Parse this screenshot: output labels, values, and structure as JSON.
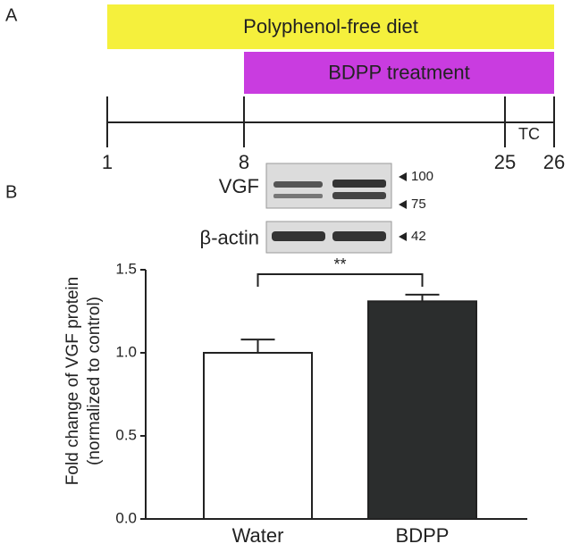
{
  "panel_a": {
    "label": "A",
    "bars": [
      {
        "label": "Polyphenol-free diet",
        "color": "#f5f03c"
      },
      {
        "label": "BDPP treatment",
        "color": "#c93ce0"
      }
    ],
    "ticks": [
      "1",
      "8",
      "25",
      "26"
    ],
    "interval_label": "TC"
  },
  "panel_b": {
    "label": "B",
    "blot": [
      {
        "label": "VGF",
        "markers": [
          "100",
          "75"
        ]
      },
      {
        "label": "β-actin",
        "markers": [
          "42"
        ]
      }
    ]
  },
  "chart_data": {
    "type": "bar",
    "ylabel": [
      "Fold change of VGF protein",
      "(normalized to control)"
    ],
    "categories": [
      "Water",
      "BDPP"
    ],
    "values": [
      1.0,
      1.31
    ],
    "errors": [
      0.08,
      0.04
    ],
    "colors": [
      "#ffffff",
      "#2b2d2d"
    ],
    "ylim": [
      0,
      1.5
    ],
    "yticks": [
      {
        "value": 0,
        "label": "0.0"
      },
      {
        "value": 0.5,
        "label": "0.5"
      },
      {
        "value": 1,
        "label": "1.0"
      },
      {
        "value": 1.5,
        "label": "1.5"
      }
    ],
    "annotation": "**"
  }
}
